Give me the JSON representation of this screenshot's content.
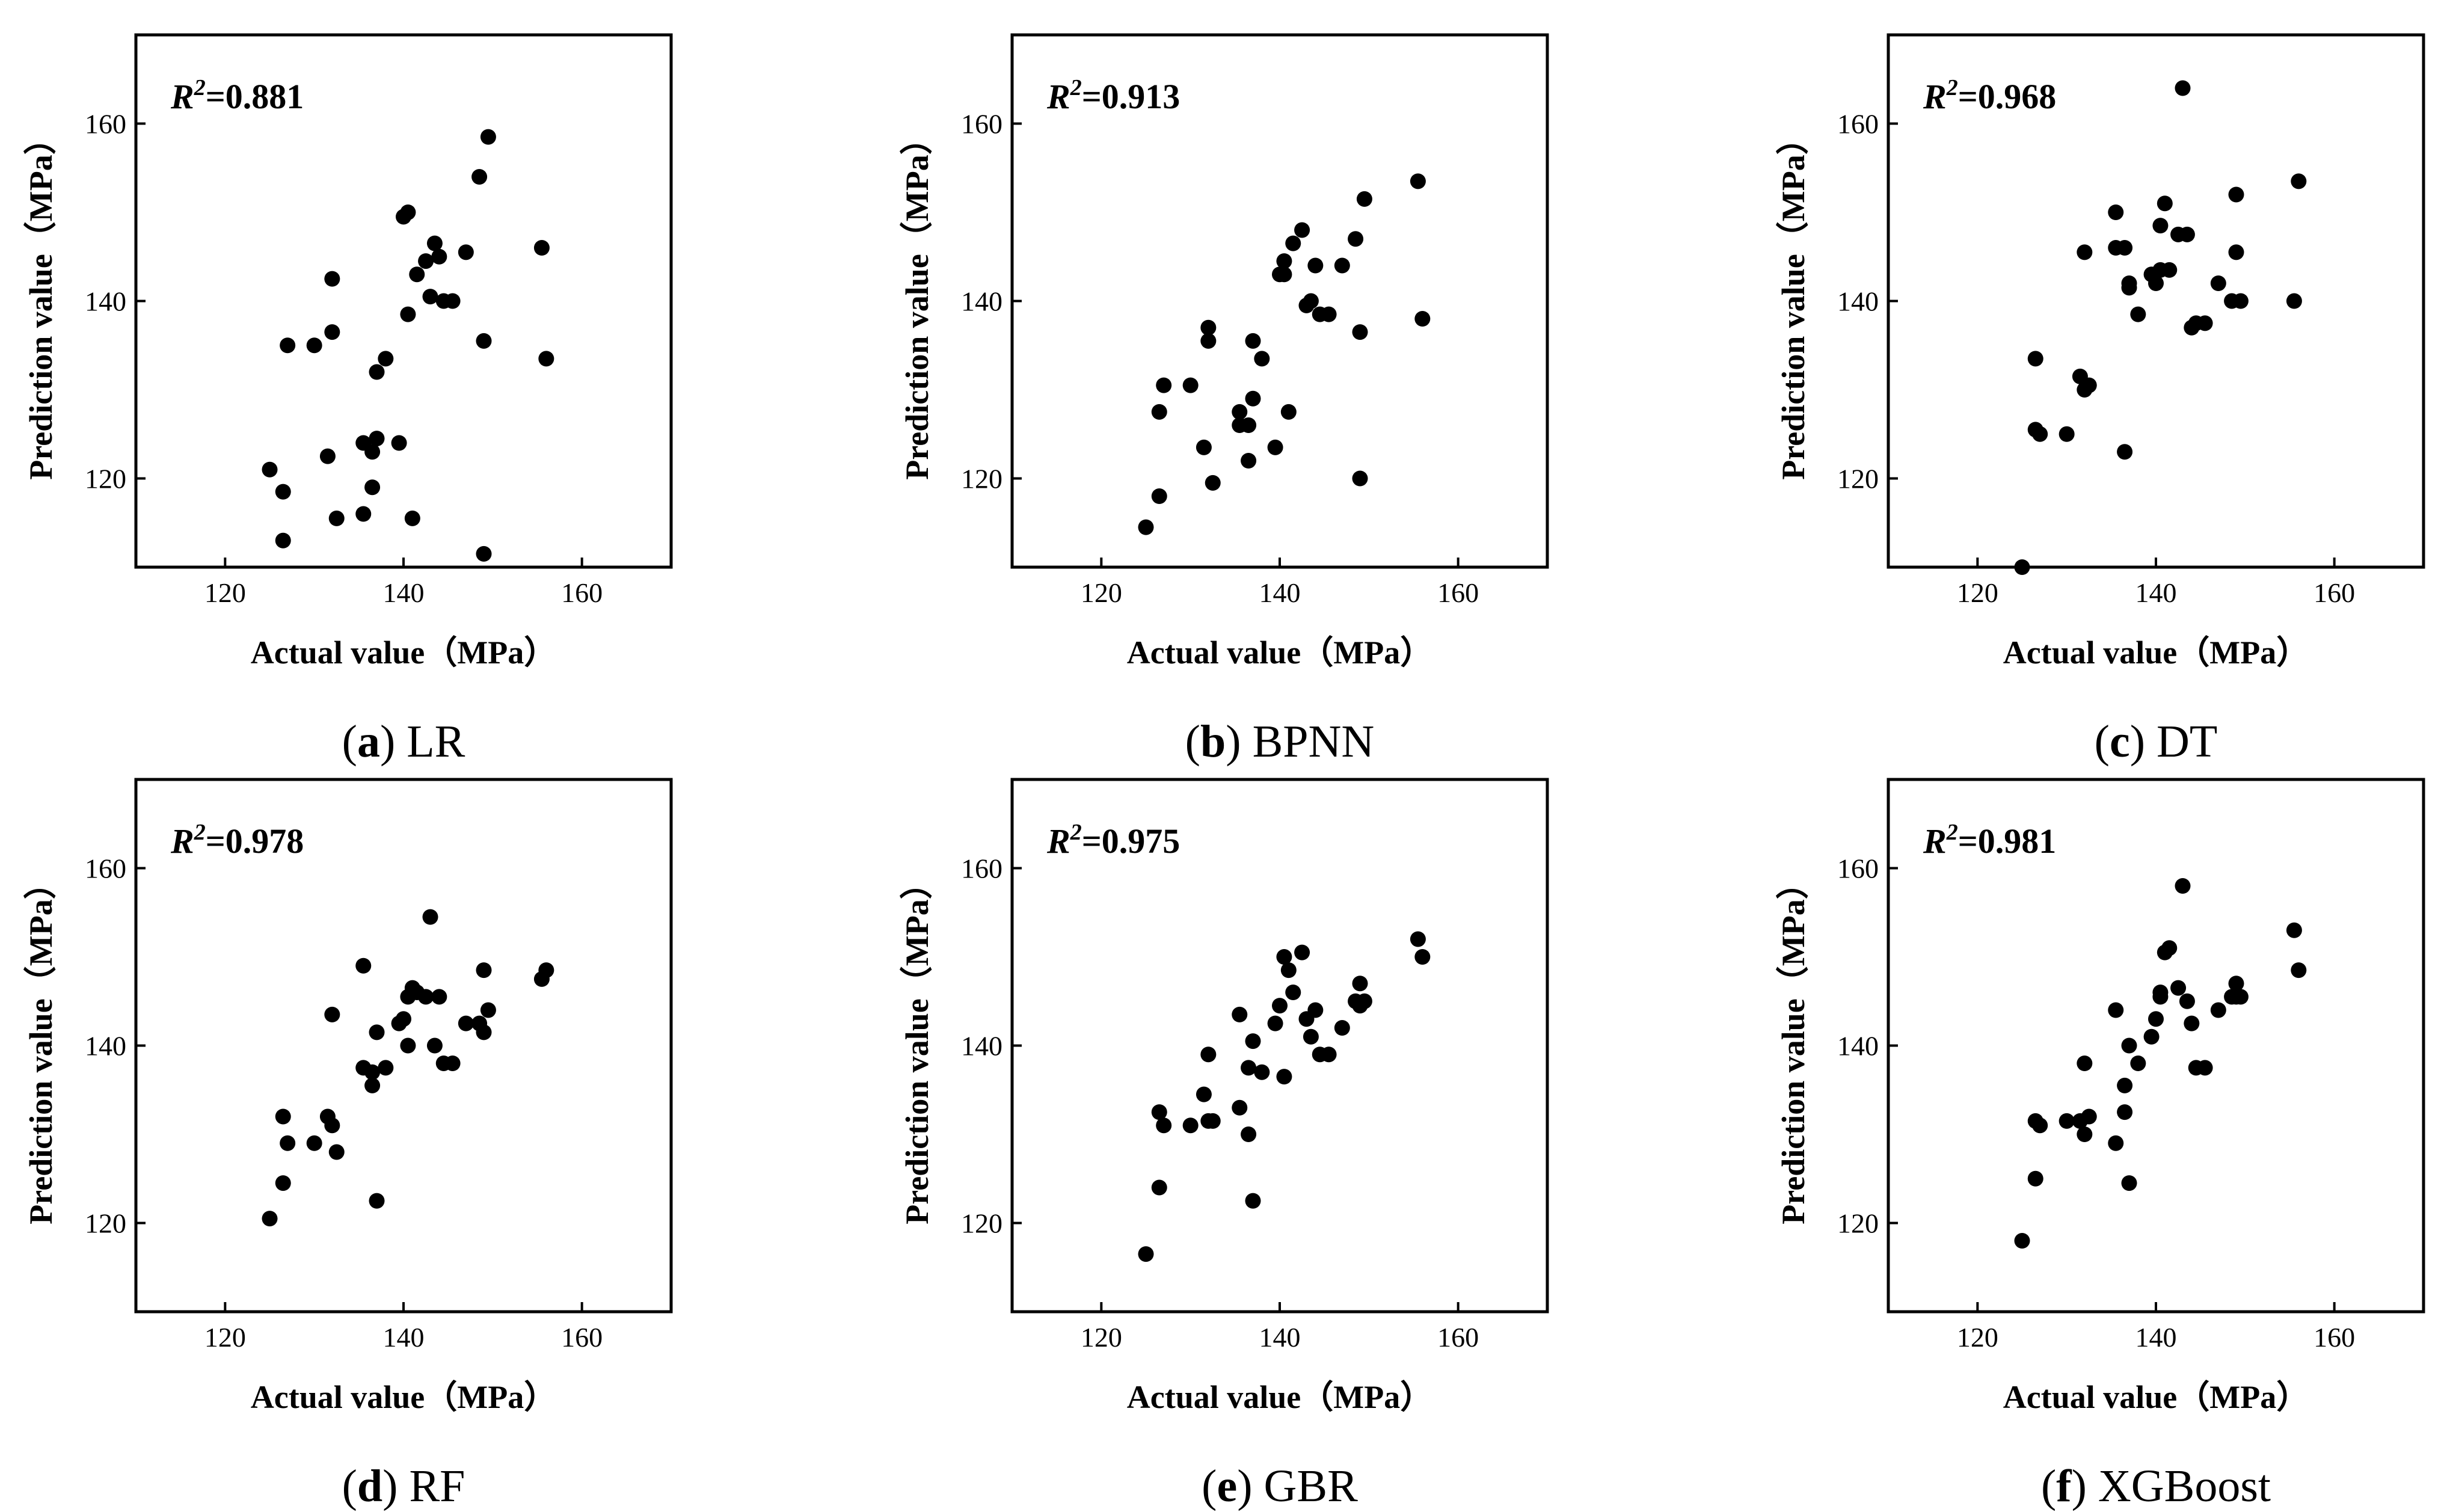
{
  "chart_data": [
    {
      "type": "scatter",
      "letter": "a",
      "title": "LR",
      "r2_label": "R",
      "r2_sup": "2",
      "r2_value": "=0.881",
      "xlabel": "Actual value（MPa）",
      "ylabel": "Prediction value（MPa）",
      "xlim": [
        110,
        170
      ],
      "ylim": [
        110,
        170
      ],
      "xticks": [
        "120",
        "140",
        "160"
      ],
      "yticks": [
        "120",
        "140",
        "160"
      ],
      "points": [
        [
          125,
          121
        ],
        [
          126.5,
          118.5
        ],
        [
          127,
          135
        ],
        [
          126.5,
          113
        ],
        [
          130,
          135
        ],
        [
          131.5,
          122.5
        ],
        [
          132,
          136.5
        ],
        [
          132,
          142.5
        ],
        [
          132.5,
          115.5
        ],
        [
          135.5,
          124
        ],
        [
          135.5,
          116
        ],
        [
          136.5,
          119
        ],
        [
          136.5,
          123
        ],
        [
          137,
          124.5
        ],
        [
          137,
          132
        ],
        [
          138,
          133.5
        ],
        [
          139.5,
          124
        ],
        [
          140,
          149.5
        ],
        [
          140.5,
          150
        ],
        [
          140.5,
          138.5
        ],
        [
          141,
          115.5
        ],
        [
          141.5,
          143
        ],
        [
          142.5,
          144.5
        ],
        [
          143,
          140.5
        ],
        [
          143.5,
          146.5
        ],
        [
          144,
          145
        ],
        [
          144.5,
          140
        ],
        [
          145.5,
          140
        ],
        [
          147,
          145.5
        ],
        [
          148.5,
          154
        ],
        [
          149,
          135.5
        ],
        [
          149,
          111.5
        ],
        [
          149.5,
          158.5
        ],
        [
          155.5,
          146
        ],
        [
          156,
          133.5
        ]
      ]
    },
    {
      "type": "scatter",
      "letter": "b",
      "title": "BPNN",
      "r2_label": "R",
      "r2_sup": "2",
      "r2_value": "=0.913",
      "xlabel": "Actual value（MPa）",
      "ylabel": "Prediction value（MPa）",
      "xlim": [
        110,
        170
      ],
      "ylim": [
        110,
        170
      ],
      "xticks": [
        "120",
        "140",
        "160"
      ],
      "yticks": [
        "120",
        "140",
        "160"
      ],
      "points": [
        [
          125,
          114.5
        ],
        [
          126.5,
          127.5
        ],
        [
          127,
          130.5
        ],
        [
          126.5,
          118
        ],
        [
          130,
          130.5
        ],
        [
          131.5,
          123.5
        ],
        [
          132,
          137
        ],
        [
          132,
          135.5
        ],
        [
          132.5,
          119.5
        ],
        [
          135.5,
          127.5
        ],
        [
          135.5,
          126
        ],
        [
          136.5,
          126
        ],
        [
          136.5,
          122
        ],
        [
          137,
          129
        ],
        [
          137,
          135.5
        ],
        [
          138,
          133.5
        ],
        [
          139.5,
          123.5
        ],
        [
          140,
          143
        ],
        [
          140.5,
          144.5
        ],
        [
          140.5,
          143
        ],
        [
          141,
          127.5
        ],
        [
          141.5,
          146.5
        ],
        [
          142.5,
          148
        ],
        [
          143,
          139.5
        ],
        [
          143.5,
          140
        ],
        [
          144,
          144
        ],
        [
          144.5,
          138.5
        ],
        [
          145.5,
          138.5
        ],
        [
          147,
          144
        ],
        [
          148.5,
          147
        ],
        [
          149,
          136.5
        ],
        [
          149,
          120
        ],
        [
          149.5,
          151.5
        ],
        [
          155.5,
          153.5
        ],
        [
          156,
          138
        ]
      ]
    },
    {
      "type": "scatter",
      "letter": "c",
      "title": "DT",
      "r2_label": "R",
      "r2_sup": "2",
      "r2_value": "=0.968",
      "xlabel": "Actual value（MPa）",
      "ylabel": "Prediction value（MPa）",
      "xlim": [
        110,
        170
      ],
      "ylim": [
        110,
        170
      ],
      "xticks": [
        "120",
        "140",
        "160"
      ],
      "yticks": [
        "120",
        "140",
        "160"
      ],
      "points": [
        [
          125,
          110
        ],
        [
          126.5,
          133.5
        ],
        [
          127,
          125
        ],
        [
          126.5,
          125.5
        ],
        [
          130,
          125
        ],
        [
          131.5,
          131.5
        ],
        [
          132,
          130
        ],
        [
          132,
          145.5
        ],
        [
          132.5,
          130.5
        ],
        [
          135.5,
          150
        ],
        [
          135.5,
          146
        ],
        [
          136.5,
          146
        ],
        [
          136.5,
          123
        ],
        [
          137,
          141.5
        ],
        [
          137,
          142
        ],
        [
          138,
          138.5
        ],
        [
          139.5,
          143
        ],
        [
          140,
          142
        ],
        [
          140.5,
          148.5
        ],
        [
          140.5,
          143.5
        ],
        [
          141,
          151
        ],
        [
          141.5,
          143.5
        ],
        [
          142.5,
          147.5
        ],
        [
          143,
          164
        ],
        [
          143.5,
          147.5
        ],
        [
          144,
          137
        ],
        [
          144.5,
          137.5
        ],
        [
          145.5,
          137.5
        ],
        [
          147,
          142
        ],
        [
          148.5,
          140
        ],
        [
          149,
          152
        ],
        [
          149,
          145.5
        ],
        [
          149.5,
          140
        ],
        [
          155.5,
          140
        ],
        [
          156,
          153.5
        ]
      ]
    },
    {
      "type": "scatter",
      "letter": "d",
      "title": "RF",
      "r2_label": "R",
      "r2_sup": "2",
      "r2_value": "=0.978",
      "xlabel": "Actual value（MPa）",
      "ylabel": "Prediction value（MPa）",
      "xlim": [
        110,
        170
      ],
      "ylim": [
        110,
        170
      ],
      "xticks": [
        "120",
        "140",
        "160"
      ],
      "yticks": [
        "120",
        "140",
        "160"
      ],
      "points": [
        [
          125,
          120.5
        ],
        [
          126.5,
          132
        ],
        [
          127,
          129
        ],
        [
          126.5,
          124.5
        ],
        [
          130,
          129
        ],
        [
          131.5,
          132
        ],
        [
          132,
          131
        ],
        [
          132,
          143.5
        ],
        [
          132.5,
          128
        ],
        [
          135.5,
          149
        ],
        [
          135.5,
          137.5
        ],
        [
          136.5,
          135.5
        ],
        [
          136.5,
          137
        ],
        [
          137,
          141.5
        ],
        [
          137,
          122.5
        ],
        [
          138,
          137.5
        ],
        [
          139.5,
          142.5
        ],
        [
          140,
          143
        ],
        [
          140.5,
          140
        ],
        [
          140.5,
          145.5
        ],
        [
          141,
          146.5
        ],
        [
          141.5,
          146
        ],
        [
          142.5,
          145.5
        ],
        [
          143,
          154.5
        ],
        [
          143.5,
          140
        ],
        [
          144,
          145.5
        ],
        [
          144.5,
          138
        ],
        [
          145.5,
          138
        ],
        [
          147,
          142.5
        ],
        [
          148.5,
          142.5
        ],
        [
          149,
          148.5
        ],
        [
          149,
          141.5
        ],
        [
          149.5,
          144
        ],
        [
          155.5,
          147.5
        ],
        [
          156,
          148.5
        ]
      ]
    },
    {
      "type": "scatter",
      "letter": "e",
      "title": "GBR",
      "r2_label": "R",
      "r2_sup": "2",
      "r2_value": "=0.975",
      "xlabel": "Actual value（MPa）",
      "ylabel": "Prediction value（MPa）",
      "xlim": [
        110,
        170
      ],
      "ylim": [
        110,
        170
      ],
      "xticks": [
        "120",
        "140",
        "160"
      ],
      "yticks": [
        "120",
        "140",
        "160"
      ],
      "points": [
        [
          125,
          116.5
        ],
        [
          126.5,
          124
        ],
        [
          127,
          131
        ],
        [
          126.5,
          132.5
        ],
        [
          130,
          131
        ],
        [
          131.5,
          134.5
        ],
        [
          132,
          139
        ],
        [
          132,
          131.5
        ],
        [
          132.5,
          131.5
        ],
        [
          135.5,
          143.5
        ],
        [
          135.5,
          133
        ],
        [
          136.5,
          137.5
        ],
        [
          136.5,
          130
        ],
        [
          137,
          140.5
        ],
        [
          137,
          122.5
        ],
        [
          138,
          137
        ],
        [
          139.5,
          142.5
        ],
        [
          140,
          144.5
        ],
        [
          140.5,
          136.5
        ],
        [
          140.5,
          150
        ],
        [
          141,
          148.5
        ],
        [
          141.5,
          146
        ],
        [
          142.5,
          150.5
        ],
        [
          143,
          143
        ],
        [
          143.5,
          141
        ],
        [
          144,
          144
        ],
        [
          144.5,
          139
        ],
        [
          145.5,
          139
        ],
        [
          147,
          142
        ],
        [
          148.5,
          145
        ],
        [
          149,
          147
        ],
        [
          149,
          144.5
        ],
        [
          149.5,
          145
        ],
        [
          155.5,
          152
        ],
        [
          156,
          150
        ]
      ]
    },
    {
      "type": "scatter",
      "letter": "f",
      "title": "XGBoost",
      "r2_label": "R",
      "r2_sup": "2",
      "r2_value": "=0.981",
      "xlabel": "Actual value（MPa）",
      "ylabel": "Prediction value（MPa）",
      "xlim": [
        110,
        170
      ],
      "ylim": [
        110,
        170
      ],
      "xticks": [
        "120",
        "140",
        "160"
      ],
      "yticks": [
        "120",
        "140",
        "160"
      ],
      "points": [
        [
          125,
          118
        ],
        [
          126.5,
          125
        ],
        [
          127,
          131
        ],
        [
          126.5,
          131.5
        ],
        [
          130,
          131.5
        ],
        [
          131.5,
          131.5
        ],
        [
          132,
          130
        ],
        [
          132,
          138
        ],
        [
          132.5,
          132
        ],
        [
          135.5,
          129
        ],
        [
          135.5,
          144
        ],
        [
          136.5,
          132.5
        ],
        [
          136.5,
          135.5
        ],
        [
          137,
          124.5
        ],
        [
          137,
          140
        ],
        [
          138,
          138
        ],
        [
          139.5,
          141
        ],
        [
          140,
          143
        ],
        [
          140.5,
          146
        ],
        [
          140.5,
          145.5
        ],
        [
          141,
          150.5
        ],
        [
          141.5,
          151
        ],
        [
          142.5,
          146.5
        ],
        [
          143,
          158
        ],
        [
          143.5,
          145
        ],
        [
          144,
          142.5
        ],
        [
          144.5,
          137.5
        ],
        [
          145.5,
          137.5
        ],
        [
          147,
          144
        ],
        [
          148.5,
          145.5
        ],
        [
          149,
          147
        ],
        [
          149,
          145.5
        ],
        [
          149.5,
          145.5
        ],
        [
          155.5,
          153
        ],
        [
          156,
          148.5
        ]
      ]
    }
  ]
}
